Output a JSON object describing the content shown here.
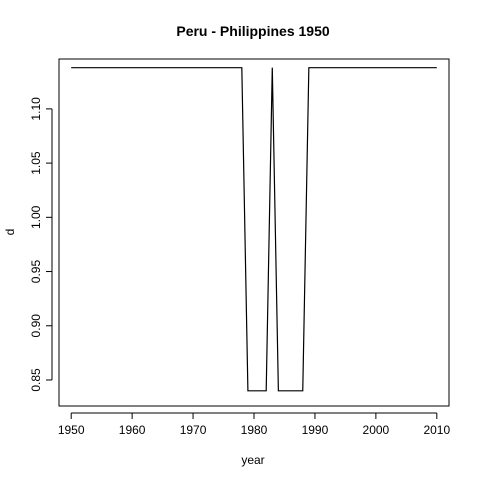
{
  "chart_data": {
    "type": "line",
    "title": "Peru - Philippines 1950",
    "xlabel": "year",
    "ylabel": "d",
    "xlim": [
      1948,
      2012
    ],
    "ylim": [
      0.826,
      1.146
    ],
    "xticks": [
      1950,
      1960,
      1970,
      1980,
      1990,
      2000,
      2010
    ],
    "yticks": [
      0.85,
      0.9,
      0.95,
      1.0,
      1.05,
      1.1
    ],
    "xtick_labels": [
      "1950",
      "1960",
      "1970",
      "1980",
      "1990",
      "2000",
      "2010"
    ],
    "ytick_labels": [
      "0.85",
      "0.90",
      "0.95",
      "1.00",
      "1.05",
      "1.10"
    ],
    "series": [
      {
        "x": [
          1950,
          1978,
          1979,
          1982,
          1983,
          1984,
          1988,
          1989,
          2010
        ],
        "y": [
          1.138,
          1.138,
          0.84,
          0.84,
          1.138,
          0.84,
          0.84,
          1.138,
          1.138
        ],
        "color": "#000000"
      }
    ]
  }
}
